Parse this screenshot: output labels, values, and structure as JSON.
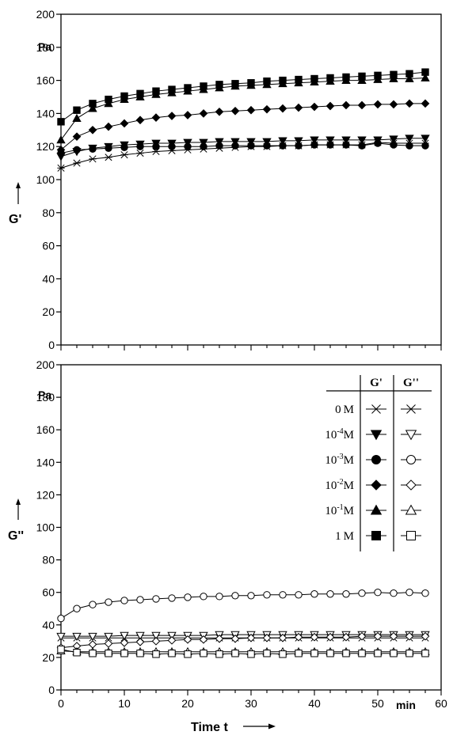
{
  "chart_data": [
    {
      "id": "top",
      "type": "line",
      "ylabel": "G'",
      "yunit": "Pa",
      "ylim": [
        0,
        200
      ],
      "yticks": [
        0,
        20,
        40,
        60,
        80,
        100,
        120,
        140,
        160,
        180,
        200
      ],
      "ytick_labels": [
        "0",
        "20",
        "40",
        "60",
        "80",
        "100",
        "120",
        "140",
        "160",
        "180",
        "200"
      ],
      "xlim": [
        0,
        60
      ],
      "grid": false,
      "x": [
        0,
        2.5,
        5,
        7.5,
        10,
        12.5,
        15,
        17.5,
        20,
        22.5,
        25,
        27.5,
        30,
        32.5,
        35,
        37.5,
        40,
        42.5,
        45,
        47.5,
        50,
        52.5,
        55,
        57.5
      ],
      "series": [
        {
          "name": "0 M",
          "marker": "star",
          "fill": "solid",
          "values": [
            107,
            110,
            112.5,
            113.5,
            115,
            116,
            117,
            117.5,
            118,
            118.5,
            119,
            119.5,
            120,
            120,
            120.5,
            120.5,
            121,
            121,
            121,
            121,
            122.5,
            122,
            122,
            122
          ]
        },
        {
          "name": "10-4 M",
          "marker": "tri-down",
          "fill": "solid",
          "values": [
            114,
            117,
            119,
            120,
            121,
            121.5,
            122,
            122,
            122.5,
            122.5,
            123,
            123,
            123,
            123,
            123.5,
            123.5,
            124,
            124,
            124,
            124,
            124,
            124.5,
            125,
            125
          ]
        },
        {
          "name": "10-3 M",
          "marker": "circle",
          "fill": "solid",
          "values": [
            116,
            118,
            118.5,
            119,
            119.5,
            120,
            120,
            120,
            120,
            120,
            120.5,
            120.5,
            120.5,
            120.5,
            120.5,
            120.5,
            121,
            121,
            121,
            120.5,
            122,
            121,
            120.5,
            120.5
          ]
        },
        {
          "name": "10-2 M",
          "marker": "diamond",
          "fill": "solid",
          "values": [
            118,
            126,
            130,
            132,
            134,
            136,
            137.5,
            138.5,
            139,
            140,
            141,
            141.5,
            142,
            142.5,
            143,
            143.5,
            144,
            144.5,
            145,
            145,
            145.5,
            145.5,
            146,
            146
          ]
        },
        {
          "name": "10-1 M",
          "marker": "tri-up",
          "fill": "solid",
          "values": [
            124,
            137,
            143,
            146,
            148.5,
            150,
            151.5,
            152.5,
            153.5,
            154.5,
            155.5,
            156.5,
            157,
            157.5,
            158,
            158.5,
            159,
            159.5,
            160,
            160,
            160.5,
            161,
            161,
            161.5
          ]
        },
        {
          "name": "1 M",
          "marker": "square",
          "fill": "solid",
          "values": [
            135,
            142,
            146,
            148.5,
            150.5,
            152,
            153.5,
            154.5,
            155.5,
            156.5,
            157.5,
            158,
            158.5,
            159.5,
            160,
            160.5,
            161,
            161.5,
            162,
            162.5,
            163,
            163.5,
            164,
            165
          ]
        }
      ]
    },
    {
      "id": "bottom",
      "type": "line",
      "ylabel": "G''",
      "yunit": "Pa",
      "xlabel": "Time t",
      "xunit": "min",
      "ylim": [
        0,
        200
      ],
      "yticks": [
        0,
        20,
        40,
        60,
        80,
        100,
        120,
        140,
        160,
        180,
        200
      ],
      "ytick_labels": [
        "0",
        "20",
        "40",
        "60",
        "80",
        "100",
        "120",
        "140",
        "160",
        "180",
        "200"
      ],
      "xlim": [
        0,
        60
      ],
      "xticks": [
        0,
        10,
        20,
        30,
        40,
        50,
        60
      ],
      "xtick_labels": [
        "0",
        "10",
        "20",
        "30",
        "40",
        "50",
        "60"
      ],
      "grid": false,
      "x": [
        0,
        2.5,
        5,
        7.5,
        10,
        12.5,
        15,
        17.5,
        20,
        22.5,
        25,
        27.5,
        30,
        32.5,
        35,
        37.5,
        40,
        42.5,
        45,
        47.5,
        50,
        52.5,
        55,
        57.5
      ],
      "series": [
        {
          "name": "0 M",
          "marker": "x",
          "fill": "open",
          "values": [
            32,
            32,
            32,
            32,
            32,
            32,
            32,
            32,
            32,
            32,
            32,
            32,
            32,
            32,
            32,
            32,
            32,
            32,
            32,
            32,
            32,
            32,
            32,
            32
          ]
        },
        {
          "name": "10-4 M",
          "marker": "tri-down",
          "fill": "open",
          "values": [
            33,
            33,
            33,
            33,
            33.5,
            33.5,
            33.5,
            33.5,
            33.5,
            33.5,
            34,
            34,
            34,
            34,
            34,
            34,
            34,
            34,
            34,
            34,
            34,
            34,
            34,
            34
          ]
        },
        {
          "name": "10-3 M",
          "marker": "circle",
          "fill": "open",
          "values": [
            44,
            50,
            52.5,
            54,
            55,
            55.5,
            56,
            56.5,
            57,
            57.5,
            57.5,
            58,
            58,
            58.5,
            58.5,
            58.5,
            59,
            59,
            59,
            59.5,
            60,
            59.5,
            60,
            59.5
          ]
        },
        {
          "name": "10-2 M",
          "marker": "diamond",
          "fill": "open",
          "values": [
            26,
            27,
            28,
            28.5,
            29,
            29.5,
            30,
            30.5,
            31,
            31,
            31.5,
            31.5,
            32,
            32,
            32,
            32.5,
            32.5,
            32.5,
            32.5,
            33,
            33,
            33,
            33,
            33
          ]
        },
        {
          "name": "10-1 M",
          "marker": "tri-up",
          "fill": "open",
          "values": [
            24,
            23.5,
            23.5,
            23.5,
            23.5,
            23.5,
            23.5,
            23.5,
            23.5,
            23.5,
            23.5,
            23.5,
            23.5,
            23.5,
            23.5,
            23.5,
            23.5,
            23.5,
            23.5,
            23.5,
            23.5,
            23.5,
            23.5,
            23.5
          ]
        },
        {
          "name": "1 M",
          "marker": "square",
          "fill": "open",
          "values": [
            25,
            23,
            22.5,
            22.5,
            22.5,
            22.5,
            22,
            22.5,
            22,
            22.5,
            22,
            22.5,
            22,
            22.5,
            22,
            22.5,
            22.5,
            22.5,
            22.5,
            22.5,
            22.5,
            22.5,
            22.5,
            22.5
          ]
        }
      ],
      "legend": {
        "placement": "top-right",
        "header": [
          "G'",
          "G''"
        ],
        "rows": [
          {
            "label": "0 M",
            "base": "0",
            "exp": "",
            "unit": "M",
            "marker": "star"
          },
          {
            "label": "10-4 M",
            "base": "10",
            "exp": "-4",
            "unit": "M",
            "marker": "tri-down"
          },
          {
            "label": "10-3 M",
            "base": "10",
            "exp": "-3",
            "unit": "M",
            "marker": "circle"
          },
          {
            "label": "10-2 M",
            "base": "10",
            "exp": "-2",
            "unit": "M",
            "marker": "diamond"
          },
          {
            "label": "10-1 M",
            "base": "10",
            "exp": "-1",
            "unit": "M",
            "marker": "tri-up"
          },
          {
            "label": "1 M",
            "base": "1",
            "exp": "",
            "unit": "M",
            "marker": "square"
          }
        ]
      }
    }
  ]
}
